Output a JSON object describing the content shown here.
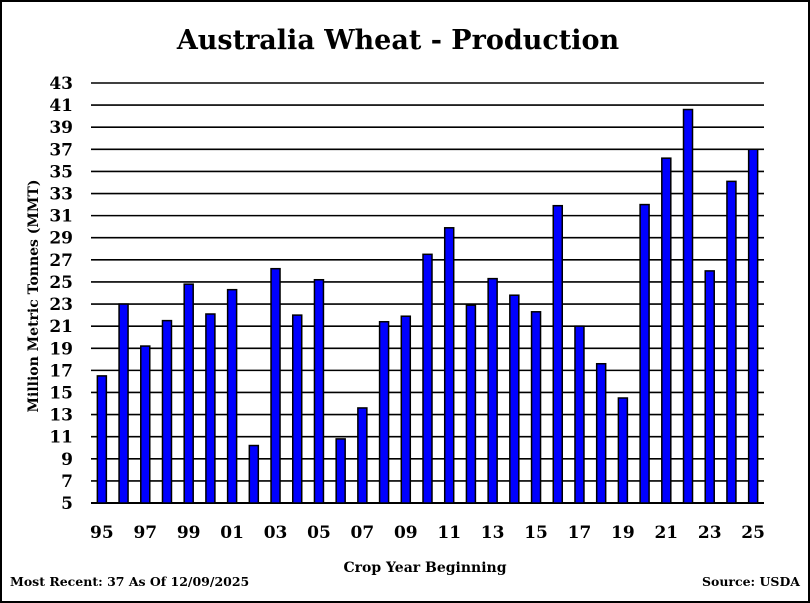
{
  "chart_data": {
    "type": "bar",
    "title": "Australia Wheat - Production",
    "xlabel": "Crop Year Beginning",
    "ylabel": "Million Metric Tonnes (MMT)",
    "ylim": [
      5,
      43
    ],
    "yticks": [
      "5",
      "7",
      "9",
      "11",
      "13",
      "15",
      "17",
      "19",
      "21",
      "23",
      "25",
      "27",
      "29",
      "31",
      "33",
      "35",
      "37",
      "39",
      "41",
      "43"
    ],
    "grid": true,
    "bar_color": "#0000ff",
    "categories": [
      "95",
      "96",
      "97",
      "98",
      "99",
      "00",
      "01",
      "02",
      "03",
      "04",
      "05",
      "06",
      "07",
      "08",
      "09",
      "10",
      "11",
      "12",
      "13",
      "14",
      "15",
      "16",
      "17",
      "18",
      "19",
      "20",
      "21",
      "22",
      "23",
      "24",
      "25"
    ],
    "xtick_labels": [
      "95",
      "",
      "97",
      "",
      "99",
      "",
      "01",
      "",
      "03",
      "",
      "05",
      "",
      "07",
      "",
      "09",
      "",
      "11",
      "",
      "13",
      "",
      "15",
      "",
      "17",
      "",
      "19",
      "",
      "21",
      "",
      "23",
      "",
      "25"
    ],
    "values": [
      16.5,
      23.0,
      19.2,
      21.5,
      24.8,
      22.1,
      24.3,
      10.2,
      26.2,
      22.0,
      25.2,
      10.8,
      13.6,
      21.4,
      21.9,
      27.5,
      29.9,
      22.9,
      25.3,
      23.8,
      22.3,
      31.9,
      21.0,
      17.6,
      14.5,
      32.0,
      36.2,
      40.6,
      26.0,
      34.1,
      37.0
    ]
  },
  "footer": {
    "most_recent": "Most Recent: 37 As Of 12/09/2025",
    "source": "Source: USDA"
  }
}
